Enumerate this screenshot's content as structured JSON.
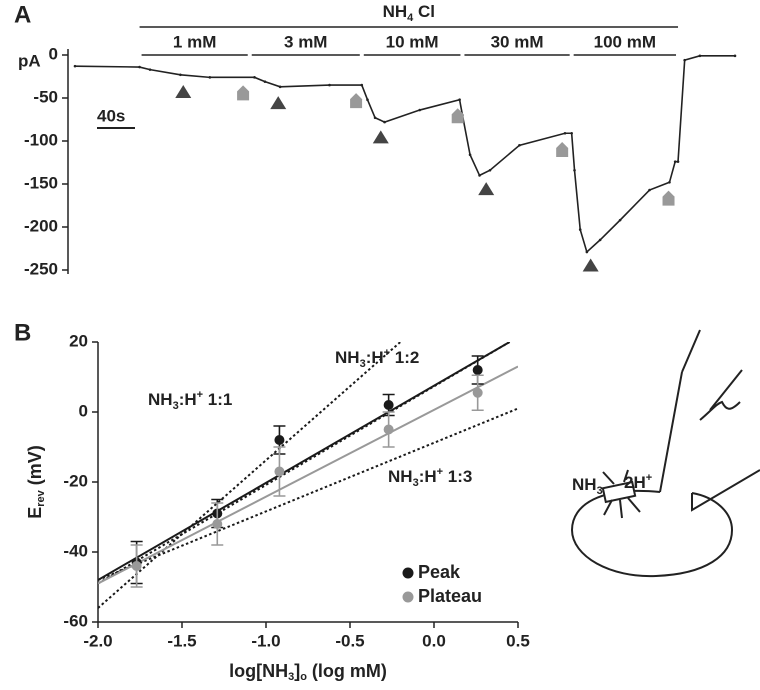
{
  "chart_data": [
    {
      "type": "line",
      "panel": "A",
      "y_unit": "pA",
      "ylim": [
        -250,
        0
      ],
      "yticks": [
        0,
        -50,
        -100,
        -150,
        -200,
        -250
      ],
      "xlim": [
        0,
        695
      ],
      "solute": [
        {
          "text": "NH"
        },
        {
          "text": "4",
          "script": "sub"
        },
        {
          "text": " Cl"
        }
      ],
      "segments": [
        {
          "label": "1 mM",
          "start": 68,
          "end": 184
        },
        {
          "label": "3 mM",
          "start": 184,
          "end": 302
        },
        {
          "label": "10 mM",
          "start": 302,
          "end": 408
        },
        {
          "label": "30 mM",
          "start": 408,
          "end": 523
        },
        {
          "label": "100 mM",
          "start": 523,
          "end": 635
        }
      ],
      "scale_bar": {
        "label": "40s",
        "value": 40
      },
      "series": [
        {
          "color": "#222222",
          "x": [
            0,
            68,
            79,
            111,
            142,
            189,
            200,
            216,
            268,
            302,
            308,
            316,
            326,
            363,
            405,
            408,
            416,
            426,
            437,
            468,
            516,
            523,
            526,
            532,
            539,
            553,
            574,
            605,
            626,
            632,
            635,
            642,
            658,
            695
          ],
          "values": [
            -13,
            -14,
            -17,
            -23,
            -26,
            -26,
            -31,
            -37,
            -35,
            -35,
            -52,
            -73,
            -78,
            -64,
            -52,
            -70,
            -116,
            -140,
            -134,
            -105,
            -91,
            -91,
            -134,
            -203,
            -229,
            -215,
            -192,
            -157,
            -148,
            -124,
            -124,
            -6,
            -1,
            -1
          ]
        }
      ],
      "peak_markers": {
        "color": "#444444",
        "x": [
          114,
          214,
          322,
          433,
          543
        ]
      },
      "plateau_markers": {
        "color": "#999999",
        "x": [
          177,
          296,
          403,
          513,
          625
        ]
      }
    },
    {
      "type": "scatter",
      "panel": "B",
      "xlim": [
        -2,
        0.5
      ],
      "xticks": [
        {
          "value": -2,
          "label": "-2.0"
        },
        -1.5,
        {
          "value": -1,
          "label": "-1.0"
        },
        -0.5,
        {
          "value": 0,
          "label": "0.0"
        },
        0.5
      ],
      "ylim": [
        -60,
        20
      ],
      "yticks": [
        -60,
        -40,
        -20,
        0,
        20
      ],
      "x_label": [
        {
          "text": "log[NH"
        },
        {
          "text": "3",
          "script": "sub"
        },
        {
          "text": "]"
        },
        {
          "text": "o",
          "script": "sub"
        },
        {
          "text": " (log mM)"
        }
      ],
      "y_label": [
        {
          "text": "E"
        },
        {
          "text": "rev",
          "script": "sub"
        },
        {
          "text": " (mV)"
        }
      ],
      "series": [
        {
          "name": "Peak",
          "color": "#1a1a1a",
          "x": [
            -1.77,
            -1.29,
            -0.92,
            -0.27,
            0.26
          ],
          "values": [
            -43,
            -29,
            -8,
            2,
            12
          ],
          "errors": [
            6,
            4,
            4,
            3,
            4
          ]
        },
        {
          "name": "Plateau",
          "color": "#999999",
          "x": [
            -1.77,
            -1.29,
            -0.92,
            -0.27,
            0.26
          ],
          "values": [
            -44,
            -32,
            -17,
            -5,
            5.5
          ],
          "errors": [
            6,
            6,
            7,
            5,
            5
          ]
        }
      ],
      "lines": [
        {
          "color": "#1a1a1a",
          "dash": "dotted",
          "x": [
            -2,
            -0.2
          ],
          "values": [
            -56,
            20
          ],
          "label": [
            {
              "text": "NH"
            },
            {
              "text": "3",
              "script": "sub"
            },
            {
              "text": ":H"
            },
            {
              "text": "+",
              "script": "sup"
            },
            {
              "text": " 1:1"
            }
          ]
        },
        {
          "color": "#1a1a1a",
          "dash": "dotted",
          "x": [
            -2,
            0.45
          ],
          "values": [
            -49,
            20
          ],
          "label": [
            {
              "text": "NH"
            },
            {
              "text": "3",
              "script": "sub"
            },
            {
              "text": ":H"
            },
            {
              "text": "+",
              "script": "sup"
            },
            {
              "text": " 1:2"
            }
          ]
        },
        {
          "color": "#1a1a1a",
          "dash": "dotted",
          "x": [
            -2,
            0.5
          ],
          "values": [
            -48,
            1
          ],
          "label": [
            {
              "text": "NH"
            },
            {
              "text": "3",
              "script": "sub"
            },
            {
              "text": ":H"
            },
            {
              "text": "+",
              "script": "sup"
            },
            {
              "text": " 1:3"
            }
          ]
        },
        {
          "color": "#1a1a1a",
          "dash": "solid",
          "x": [
            -2,
            0.45
          ],
          "values": [
            -48,
            20
          ]
        },
        {
          "color": "#999999",
          "dash": "solid",
          "x": [
            -2,
            0.5
          ],
          "values": [
            -49,
            13
          ]
        }
      ]
    }
  ],
  "diagram": {
    "labels": [
      [
        {
          "text": "NH"
        },
        {
          "text": "3",
          "script": "sub"
        }
      ],
      [
        {
          "text": "2H"
        },
        {
          "text": "+",
          "script": "sup"
        }
      ]
    ]
  }
}
